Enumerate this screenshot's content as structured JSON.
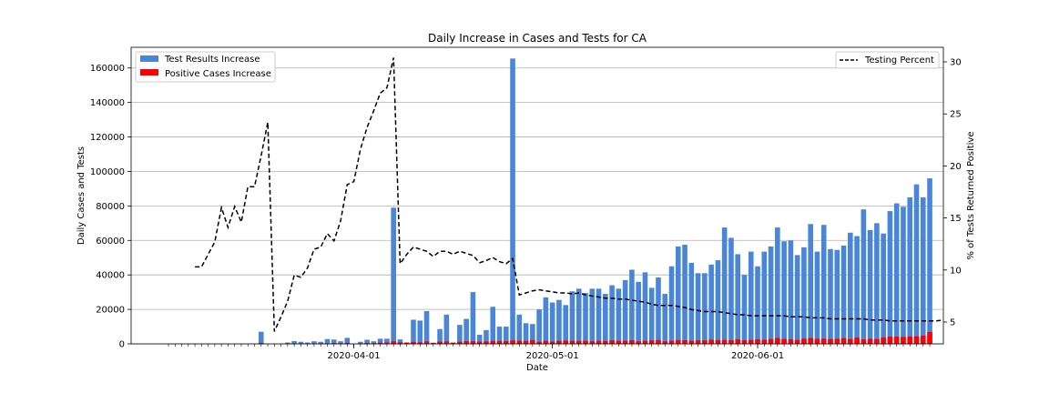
{
  "chart_data": {
    "type": "bar",
    "title": "Daily Increase in Cases and Tests for CA",
    "xlabel": "Date",
    "ylabel": "Daily Cases and Tests",
    "y2label": "% of Tests Returned Positive",
    "ylim": [
      0,
      172000
    ],
    "y2lim": [
      2.9,
      31.4
    ],
    "yticks": [
      0,
      20000,
      40000,
      60000,
      80000,
      100000,
      120000,
      140000,
      160000
    ],
    "y2ticks": [
      5,
      10,
      15,
      20,
      25,
      30
    ],
    "xticks": [
      {
        "date": "2020-04-01",
        "label": "2020-04-01"
      },
      {
        "date": "2020-05-01",
        "label": "2020-05-01"
      },
      {
        "date": "2020-06-01",
        "label": "2020-06-01"
      }
    ],
    "start_date": "2020-03-04",
    "grid": "y",
    "legend_left": "top-left",
    "legend_right": "top-right",
    "colors": {
      "tests": "#4a86d8",
      "positive": "#ff0000",
      "percent": "#000000"
    },
    "series": [
      {
        "name": "Test Results Increase",
        "kind": "bar",
        "values": [
          0,
          0,
          0,
          0,
          0,
          0,
          0,
          0,
          0,
          0,
          0,
          0,
          0,
          0,
          7000,
          0,
          0,
          0,
          800,
          1600,
          1200,
          800,
          1500,
          1200,
          2800,
          2500,
          1500,
          3500,
          0,
          1200,
          2400,
          1500,
          3000,
          3000,
          79000,
          2600,
          500,
          14000,
          13500,
          19000,
          600,
          8600,
          17000,
          700,
          11000,
          14500,
          30000,
          5300,
          8000,
          21500,
          10000,
          10000,
          165500,
          17000,
          12000,
          11500,
          20000,
          27000,
          24000,
          25500,
          22500,
          30500,
          32000,
          29500,
          32000,
          32000,
          29000,
          34000,
          32000,
          37000,
          43000,
          36000,
          41500,
          32500,
          38500,
          29000,
          45000,
          56500,
          57500,
          47000,
          41000,
          41000,
          46000,
          48500,
          67500,
          61500,
          52000,
          40000,
          53500,
          45000,
          53500,
          56500,
          67500,
          59500,
          60000,
          51500,
          56000,
          69500,
          53500,
          69000,
          55000,
          54500,
          57000,
          64500,
          62500,
          78000,
          66000,
          70000,
          64000,
          77000,
          81500,
          79500,
          85000,
          92500,
          85000,
          96000
        ]
      },
      {
        "name": "Positive Cases Increase",
        "kind": "bar",
        "values": [
          0,
          0,
          0,
          0,
          0,
          0,
          0,
          0,
          0,
          0,
          0,
          0,
          0,
          0,
          500,
          0,
          0,
          0,
          100,
          200,
          100,
          100,
          200,
          200,
          300,
          400,
          300,
          600,
          0,
          300,
          500,
          400,
          700,
          800,
          1500,
          900,
          800,
          1200,
          900,
          1400,
          600,
          1300,
          1400,
          700,
          1200,
          1600,
          1500,
          1300,
          1400,
          1700,
          1700,
          1600,
          2000,
          1800,
          1700,
          2200,
          1200,
          1800,
          1300,
          1700,
          1900,
          1800,
          1700,
          1800,
          1500,
          1700,
          1700,
          2000,
          1800,
          1800,
          2100,
          1500,
          1800,
          2000,
          2200,
          1500,
          1800,
          2200,
          2100,
          1800,
          2000,
          2000,
          2400,
          2200,
          2300,
          2100,
          2600,
          2100,
          2300,
          2600,
          2400,
          2800,
          3400,
          2800,
          2600,
          2300,
          3000,
          3400,
          2900,
          3000,
          2800,
          2900,
          3300,
          2800,
          3600,
          2600,
          2900,
          2800,
          3700,
          4200,
          4200,
          4000,
          4300,
          4400,
          4800,
          6900
        ]
      },
      {
        "name": "Testing Percent",
        "kind": "line",
        "values": [
          null,
          null,
          null,
          null,
          10.3,
          10.3,
          11.5,
          12.7,
          16.0,
          14.1,
          16.1,
          14.6,
          18.0,
          18.0,
          21.0,
          24.2,
          4.1,
          5.5,
          7.0,
          9.5,
          9.3,
          10.2,
          12.0,
          12.2,
          13.5,
          12.8,
          14.7,
          18.2,
          18.5,
          21.6,
          23.7,
          25.3,
          27.0,
          27.5,
          30.4,
          10.6,
          11.5,
          12.2,
          12.0,
          11.8,
          11.3,
          11.8,
          11.8,
          11.5,
          11.8,
          11.6,
          11.4,
          10.7,
          10.9,
          11.2,
          10.8,
          10.6,
          11.1,
          7.6,
          7.8,
          8.0,
          8.1,
          8.0,
          7.9,
          7.8,
          7.8,
          7.7,
          7.8,
          7.6,
          7.5,
          7.4,
          7.3,
          7.3,
          7.2,
          7.2,
          7.1,
          7.0,
          6.9,
          6.7,
          6.6,
          6.6,
          6.6,
          6.5,
          6.4,
          6.2,
          6.1,
          6.0,
          6.0,
          6.0,
          5.9,
          5.8,
          5.7,
          5.7,
          5.6,
          5.6,
          5.6,
          5.6,
          5.6,
          5.6,
          5.5,
          5.5,
          5.5,
          5.4,
          5.4,
          5.4,
          5.3,
          5.3,
          5.3,
          5.3,
          5.3,
          5.3,
          5.2,
          5.2,
          5.2,
          5.1,
          5.1,
          5.1,
          5.1,
          5.1,
          5.1,
          5.1,
          5.1,
          5.2
        ]
      }
    ]
  }
}
